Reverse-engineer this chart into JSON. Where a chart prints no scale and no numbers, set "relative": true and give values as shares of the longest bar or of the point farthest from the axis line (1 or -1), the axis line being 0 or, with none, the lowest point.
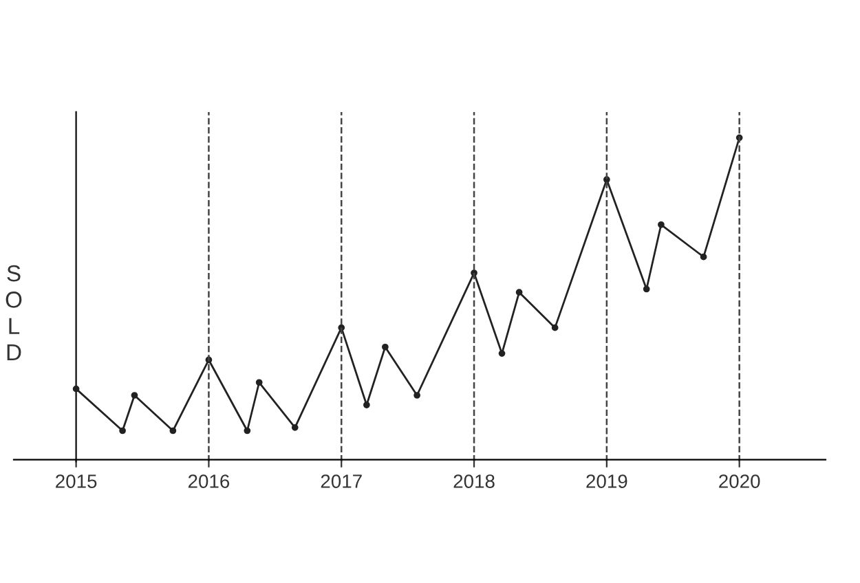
{
  "chart_data": {
    "type": "line",
    "relative": true,
    "ylabel": "SOLD",
    "x": [
      2015,
      2015.35,
      2015.44,
      2015.73,
      2016,
      2016.29,
      2016.38,
      2016.65,
      2017,
      2017.19,
      2017.33,
      2017.57,
      2018,
      2018.21,
      2018.34,
      2018.61,
      2019,
      2019.3,
      2019.41,
      2019.73,
      2020
    ],
    "series": [
      {
        "color": "#222222",
        "values": [
          0.22,
          0.09,
          0.2,
          0.09,
          0.31,
          0.09,
          0.24,
          0.1,
          0.41,
          0.17,
          0.35,
          0.2,
          0.58,
          0.33,
          0.52,
          0.41,
          0.87,
          0.53,
          0.73,
          0.63,
          1
        ]
      }
    ],
    "xlim": [
      2014.53,
      2020.65
    ],
    "xticks": [
      2015,
      2016,
      2017,
      2018,
      2019,
      2020
    ],
    "ref_lines": [
      {
        "axis": "x",
        "value": 2015,
        "line_style": "solid",
        "color": "#222222"
      },
      {
        "axis": "x",
        "value": 2016,
        "line_style": "dashed",
        "color": "#444444"
      },
      {
        "axis": "x",
        "value": 2017,
        "line_style": "dashed",
        "color": "#444444"
      },
      {
        "axis": "x",
        "value": 2018,
        "line_style": "dashed",
        "color": "#444444"
      },
      {
        "axis": "x",
        "value": 2019,
        "line_style": "dashed",
        "color": "#444444"
      },
      {
        "axis": "x",
        "value": 2020,
        "line_style": "dashed",
        "color": "#444444"
      }
    ],
    "marker": "circle",
    "line_style": "solid",
    "grid": false,
    "legend": false
  }
}
